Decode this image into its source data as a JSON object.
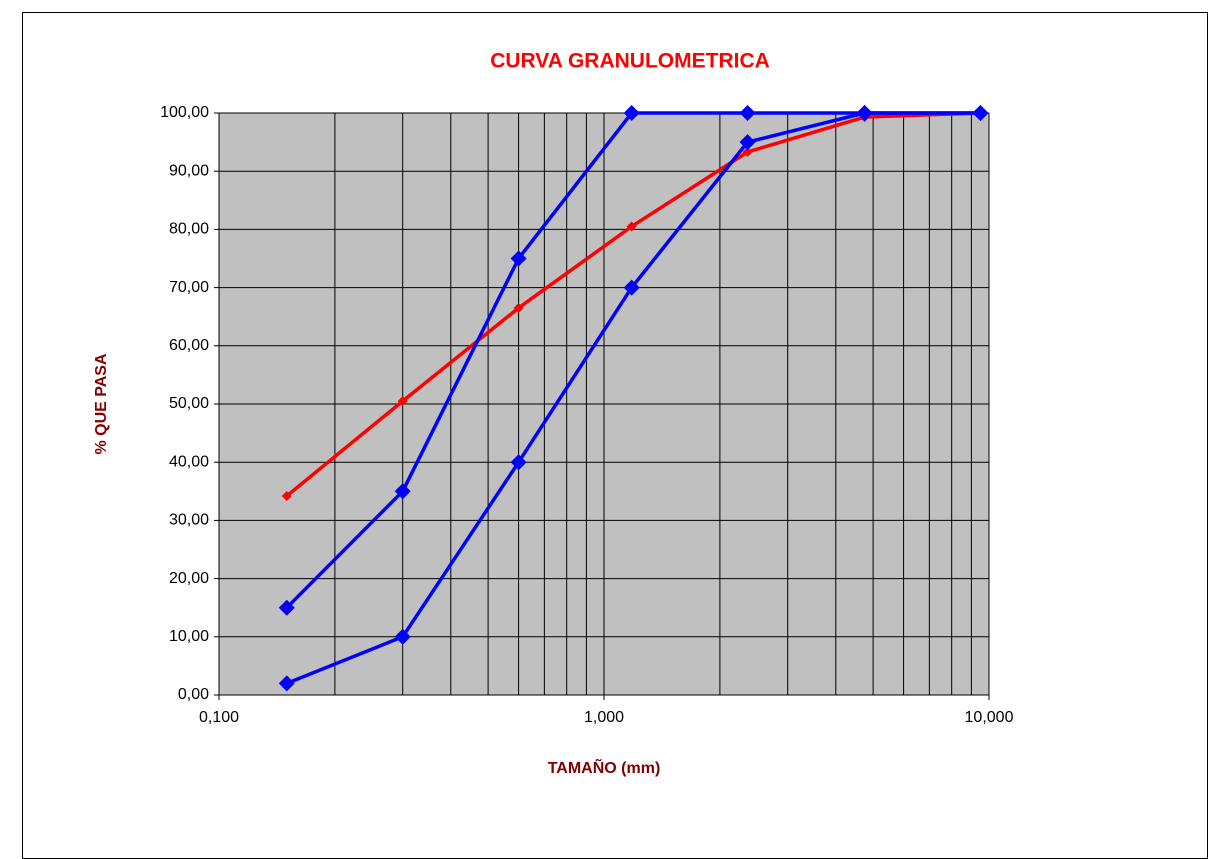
{
  "chart_data": {
    "type": "line",
    "title": "CURVA GRANULOMETRICA",
    "x_label": "TAMAÑO (mm)",
    "y_label": "% QUE PASA",
    "x": [
      0.15,
      0.3,
      0.6,
      1.18,
      2.36,
      4.75,
      9.5
    ],
    "series": [
      {
        "color": "#ff0000",
        "values": [
          34.2,
          50.5,
          66.5,
          80.5,
          93.3,
          99.3,
          100
        ]
      },
      {
        "color": "#0000ff",
        "values": [
          15,
          35,
          75,
          100,
          100,
          100,
          100
        ]
      },
      {
        "color": "#0000ff",
        "values": [
          2,
          10,
          40,
          70,
          95,
          100,
          100
        ]
      }
    ],
    "xscale": "log",
    "xlim": [
      0.1,
      10
    ],
    "xticks": [
      {
        "value": 0.1,
        "label": "0,100"
      },
      {
        "value": 1,
        "label": "1,000"
      },
      {
        "value": 10,
        "label": "10,000"
      }
    ],
    "xticks_minor": [
      0.2,
      0.3,
      0.4,
      0.5,
      0.6,
      0.7,
      0.8,
      0.9,
      2,
      3,
      4,
      5,
      6,
      7,
      8,
      9
    ],
    "ylim": [
      0,
      100
    ],
    "yticks": [
      {
        "value": 0,
        "label": "0,00"
      },
      {
        "value": 10,
        "label": "10,00"
      },
      {
        "value": 20,
        "label": "20,00"
      },
      {
        "value": 30,
        "label": "30,00"
      },
      {
        "value": 40,
        "label": "40,00"
      },
      {
        "value": 50,
        "label": "50,00"
      },
      {
        "value": 60,
        "label": "60,00"
      },
      {
        "value": 70,
        "label": "70,00"
      },
      {
        "value": 80,
        "label": "80,00"
      },
      {
        "value": 90,
        "label": "90,00"
      },
      {
        "value": 100,
        "label": "100,00"
      }
    ],
    "grid": true,
    "plot_background": "#c0c0c0"
  }
}
